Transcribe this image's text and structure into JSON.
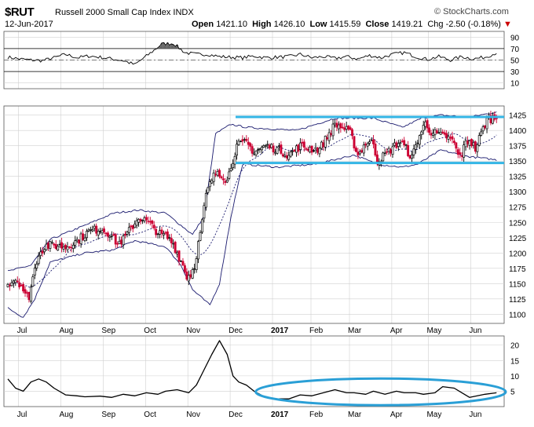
{
  "header": {
    "symbol": "$RUT",
    "name": "Russell 2000 Small Cap Index",
    "exchange": "INDX",
    "date": "12-Jun-2017",
    "open_label": "Open",
    "open": "1421.10",
    "high_label": "High",
    "high": "1426.10",
    "low_label": "Low",
    "low": "1415.59",
    "close_label": "Close",
    "close": "1419.21",
    "change": "Chg -2.50 (-0.18%)",
    "change_arrow": "▼",
    "brand": "© StockCharts.com"
  },
  "colors": {
    "up": "#000000",
    "down": "#cc0033",
    "band": "#1a1a6e",
    "trendline": "#33b5e5",
    "ellipse": "#2a9fd6",
    "grid": "#d0d0d0"
  },
  "chart_data": [
    {
      "type": "line",
      "title": "RSI panel",
      "ylim": [
        0,
        100
      ],
      "ticks": [
        "90",
        "70",
        "50",
        "30",
        "10"
      ],
      "tick_values": [
        90,
        70,
        50,
        30,
        10
      ],
      "overbought": 70,
      "oversold": 30,
      "x": [
        0,
        6,
        12,
        18,
        24,
        30,
        36,
        42,
        48,
        54,
        60,
        66,
        70,
        74,
        80,
        86,
        92,
        98,
        104,
        110,
        116,
        122,
        128,
        134,
        140,
        146,
        152,
        158,
        164,
        170,
        176,
        182,
        188,
        194,
        200,
        206,
        212,
        218,
        224,
        230,
        236,
        242,
        248,
        252,
        254
      ],
      "values": [
        55,
        52,
        50,
        49,
        54,
        60,
        54,
        57,
        55,
        52,
        49,
        42,
        52,
        62,
        78,
        79,
        63,
        60,
        60,
        56,
        55,
        54,
        57,
        54,
        55,
        56,
        60,
        54,
        56,
        53,
        56,
        52,
        58,
        54,
        60,
        63,
        56,
        51,
        56,
        50,
        56,
        52,
        55,
        60,
        63
      ]
    },
    {
      "type": "candlestick",
      "title": "Price with Bollinger Bands",
      "ylim": [
        1085,
        1440
      ],
      "ticks": [
        "1425",
        "1400",
        "1375",
        "1350",
        "1325",
        "1300",
        "1275",
        "1250",
        "1225",
        "1200",
        "1175",
        "1150",
        "1125",
        "1100"
      ],
      "tick_values": [
        1425,
        1400,
        1375,
        1350,
        1325,
        1300,
        1275,
        1250,
        1225,
        1200,
        1175,
        1150,
        1125,
        1100
      ],
      "xlabels": [
        "Jul",
        "Aug",
        "Sep",
        "Oct",
        "Nov",
        "Dec",
        "2017",
        "Feb",
        "Mar",
        "Apr",
        "May",
        "Jun"
      ],
      "xlabel_index": [
        8,
        30,
        52,
        74,
        96,
        118,
        140,
        160,
        180,
        202,
        221,
        243
      ],
      "bold_labels": [
        "2017"
      ],
      "close_anchors": [
        [
          0,
          1150
        ],
        [
          4,
          1158
        ],
        [
          7,
          1148
        ],
        [
          9,
          1130
        ],
        [
          11,
          1130
        ],
        [
          13,
          1160
        ],
        [
          16,
          1200
        ],
        [
          20,
          1212
        ],
        [
          26,
          1212
        ],
        [
          30,
          1210
        ],
        [
          36,
          1220
        ],
        [
          42,
          1235
        ],
        [
          48,
          1240
        ],
        [
          53,
          1232
        ],
        [
          57,
          1215
        ],
        [
          60,
          1222
        ],
        [
          64,
          1240
        ],
        [
          68,
          1258
        ],
        [
          72,
          1252
        ],
        [
          76,
          1240
        ],
        [
          79,
          1230
        ],
        [
          82,
          1228
        ],
        [
          86,
          1215
        ],
        [
          88,
          1200
        ],
        [
          91,
          1180
        ],
        [
          93,
          1162
        ],
        [
          95,
          1165
        ],
        [
          97,
          1180
        ],
        [
          99,
          1215
        ],
        [
          101,
          1250
        ],
        [
          103,
          1295
        ],
        [
          106,
          1320
        ],
        [
          109,
          1335
        ],
        [
          112,
          1325
        ],
        [
          114,
          1318
        ],
        [
          116,
          1342
        ],
        [
          119,
          1375
        ],
        [
          124,
          1380
        ],
        [
          128,
          1365
        ],
        [
          134,
          1375
        ],
        [
          140,
          1370
        ],
        [
          146,
          1360
        ],
        [
          152,
          1375
        ],
        [
          158,
          1370
        ],
        [
          162,
          1370
        ],
        [
          166,
          1390
        ],
        [
          170,
          1410
        ],
        [
          174,
          1405
        ],
        [
          178,
          1395
        ],
        [
          182,
          1360
        ],
        [
          186,
          1380
        ],
        [
          190,
          1380
        ],
        [
          192,
          1350
        ],
        [
          196,
          1360
        ],
        [
          200,
          1372
        ],
        [
          204,
          1382
        ],
        [
          207,
          1370
        ],
        [
          210,
          1355
        ],
        [
          213,
          1385
        ],
        [
          217,
          1412
        ],
        [
          220,
          1398
        ],
        [
          224,
          1392
        ],
        [
          228,
          1390
        ],
        [
          232,
          1380
        ],
        [
          234,
          1358
        ],
        [
          236,
          1362
        ],
        [
          238,
          1380
        ],
        [
          240,
          1385
        ],
        [
          243,
          1370
        ],
        [
          246,
          1395
        ],
        [
          249,
          1418
        ],
        [
          252,
          1420
        ],
        [
          254,
          1419
        ]
      ],
      "resistance": 1422,
      "support": 1347,
      "bollinger": {
        "period": 20,
        "upper_anchors": [
          [
            0,
            1170
          ],
          [
            12,
            1180
          ],
          [
            22,
            1222
          ],
          [
            40,
            1245
          ],
          [
            55,
            1265
          ],
          [
            68,
            1270
          ],
          [
            82,
            1265
          ],
          [
            90,
            1245
          ],
          [
            96,
            1230
          ],
          [
            102,
            1260
          ],
          [
            108,
            1395
          ],
          [
            116,
            1410
          ],
          [
            124,
            1405
          ],
          [
            150,
            1400
          ],
          [
            170,
            1420
          ],
          [
            190,
            1420
          ],
          [
            205,
            1405
          ],
          [
            215,
            1420
          ],
          [
            225,
            1425
          ],
          [
            240,
            1422
          ],
          [
            254,
            1430
          ]
        ],
        "lower_anchors": [
          [
            0,
            1110
          ],
          [
            8,
            1095
          ],
          [
            14,
            1125
          ],
          [
            22,
            1185
          ],
          [
            40,
            1200
          ],
          [
            55,
            1205
          ],
          [
            66,
            1220
          ],
          [
            82,
            1210
          ],
          [
            90,
            1180
          ],
          [
            96,
            1140
          ],
          [
            105,
            1115
          ],
          [
            110,
            1150
          ],
          [
            116,
            1260
          ],
          [
            122,
            1345
          ],
          [
            140,
            1340
          ],
          [
            160,
            1345
          ],
          [
            180,
            1360
          ],
          [
            192,
            1345
          ],
          [
            205,
            1340
          ],
          [
            213,
            1345
          ],
          [
            225,
            1368
          ],
          [
            238,
            1358
          ],
          [
            254,
            1352
          ]
        ]
      }
    },
    {
      "type": "line",
      "title": "Lower indicator panel",
      "ylim": [
        0,
        23
      ],
      "ticks": [
        "20",
        "15",
        "10",
        "5"
      ],
      "tick_values": [
        20,
        15,
        10,
        5
      ],
      "x": [
        0,
        4,
        8,
        12,
        16,
        20,
        24,
        30,
        36,
        40,
        48,
        54,
        60,
        66,
        72,
        78,
        82,
        88,
        94,
        98,
        102,
        106,
        110,
        114,
        117,
        120,
        124,
        128,
        134,
        140,
        146,
        152,
        158,
        164,
        170,
        176,
        180,
        186,
        190,
        196,
        202,
        206,
        212,
        216,
        222,
        226,
        232,
        236,
        240,
        244,
        248,
        254
      ],
      "values": [
        9,
        6,
        5,
        8,
        9,
        8,
        6,
        3.8,
        3.5,
        3.2,
        3.4,
        3,
        4,
        3.5,
        4.5,
        4,
        5,
        5.5,
        4.5,
        7,
        12,
        17,
        21.5,
        17,
        10,
        8,
        7,
        5,
        3,
        2.5,
        2.5,
        3.8,
        3.5,
        4.5,
        5.5,
        4.5,
        4.5,
        4,
        5,
        4,
        5,
        4.5,
        4.5,
        4,
        4.5,
        6.5,
        6,
        4.5,
        3,
        3.5,
        4,
        4.5
      ],
      "circled_from": 128,
      "circled_to": 254
    }
  ]
}
